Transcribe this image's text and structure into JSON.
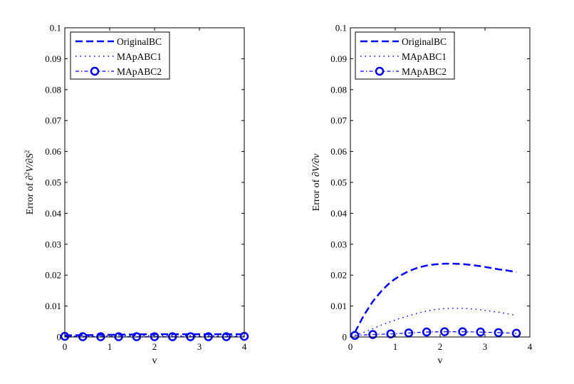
{
  "chart_data": [
    {
      "type": "line",
      "xlabel": "v",
      "ylabel": "Error of ∂²V/∂S²",
      "xlim": [
        0,
        4
      ],
      "ylim": [
        0,
        0.1
      ],
      "xticks": [
        "0",
        "1",
        "2",
        "3",
        "4"
      ],
      "yticks": [
        "0",
        "0.01",
        "0.02",
        "0.03",
        "0.04",
        "0.05",
        "0.06",
        "0.07",
        "0.08",
        "0.09",
        "0.1"
      ],
      "grid": false,
      "legend_position": "top-left",
      "series": [
        {
          "name": "OriginalBC",
          "style": "dashed",
          "color": "#0000ff",
          "x": [
            0,
            0.5,
            1,
            1.5,
            2,
            2.5,
            3,
            3.5,
            4
          ],
          "y": [
            0.0005,
            0.0006,
            0.0007,
            0.0008,
            0.0009,
            0.0009,
            0.0009,
            0.0009,
            0.0009
          ]
        },
        {
          "name": "MApABC1",
          "style": "dotted",
          "color": "#0000ff",
          "x": [
            0,
            0.5,
            1,
            1.5,
            2,
            2.5,
            3,
            3.5,
            4
          ],
          "y": [
            0.0003,
            0.0003,
            0.0004,
            0.0004,
            0.0004,
            0.0004,
            0.0004,
            0.0004,
            0.0004
          ]
        },
        {
          "name": "MApABC2",
          "style": "dash-dot-circle",
          "color": "#0000ff",
          "x": [
            0,
            0.4,
            0.8,
            1.2,
            1.6,
            2.0,
            2.4,
            2.8,
            3.2,
            3.6,
            4.0
          ],
          "y": [
            0.0002,
            0.0001,
            0.0001,
            0.0001,
            0.0001,
            0.0001,
            0.0001,
            0.0001,
            0.0001,
            0.0001,
            0.0002
          ]
        }
      ]
    },
    {
      "type": "line",
      "xlabel": "v",
      "ylabel": "Error of ∂V/∂v",
      "xlim": [
        0,
        4
      ],
      "ylim": [
        0,
        0.1
      ],
      "xticks": [
        "0",
        "1",
        "2",
        "3",
        "4"
      ],
      "yticks": [
        "0",
        "0.01",
        "0.02",
        "0.03",
        "0.04",
        "0.05",
        "0.06",
        "0.07",
        "0.08",
        "0.09",
        "0.1"
      ],
      "grid": false,
      "legend_position": "top-left",
      "series": [
        {
          "name": "OriginalBC",
          "style": "dashed",
          "color": "#0000ff",
          "x": [
            0.1,
            0.3,
            0.5,
            0.7,
            0.9,
            1.1,
            1.3,
            1.5,
            1.7,
            1.9,
            2.1,
            2.3,
            2.5,
            2.7,
            2.9,
            3.1,
            3.3,
            3.5,
            3.7
          ],
          "y": [
            0.0015,
            0.007,
            0.0115,
            0.015,
            0.0178,
            0.0198,
            0.0213,
            0.0224,
            0.0231,
            0.0235,
            0.0237,
            0.0237,
            0.0236,
            0.0233,
            0.0229,
            0.0224,
            0.0219,
            0.0215,
            0.021
          ]
        },
        {
          "name": "MApABC1",
          "style": "dotted",
          "color": "#0000ff",
          "x": [
            0.1,
            0.3,
            0.5,
            0.7,
            0.9,
            1.1,
            1.3,
            1.5,
            1.7,
            1.9,
            2.1,
            2.3,
            2.5,
            2.7,
            2.9,
            3.1,
            3.3,
            3.5,
            3.7
          ],
          "y": [
            0.0005,
            0.0015,
            0.0027,
            0.0039,
            0.005,
            0.006,
            0.0069,
            0.0077,
            0.0084,
            0.0089,
            0.0092,
            0.0093,
            0.0093,
            0.0091,
            0.0088,
            0.0084,
            0.008,
            0.0075,
            0.007
          ]
        },
        {
          "name": "MApABC2",
          "style": "dash-dot-circle",
          "color": "#0000ff",
          "x": [
            0.1,
            0.5,
            0.9,
            1.3,
            1.7,
            2.1,
            2.5,
            2.9,
            3.3,
            3.7
          ],
          "y": [
            0.0005,
            0.0008,
            0.001,
            0.0013,
            0.0016,
            0.0017,
            0.0017,
            0.0016,
            0.0014,
            0.0012
          ]
        }
      ]
    }
  ]
}
